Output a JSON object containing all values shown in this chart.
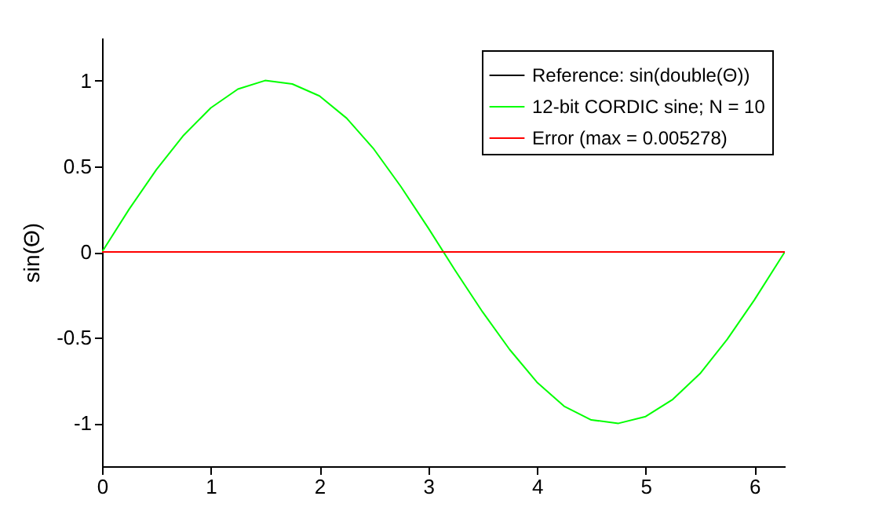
{
  "chart_data": {
    "type": "line",
    "ylabel": "sin(Θ)",
    "x": [
      0,
      0.25,
      0.5,
      0.75,
      1,
      1.25,
      1.5,
      1.75,
      2,
      2.25,
      2.5,
      2.75,
      3,
      3.25,
      3.5,
      3.75,
      4,
      4.25,
      4.5,
      4.75,
      5,
      5.25,
      5.5,
      5.75,
      6,
      6.25,
      6.28
    ],
    "series": [
      {
        "name": "Reference: sin(double(Θ))",
        "color": "#000000",
        "values": [
          null,
          null,
          null,
          null,
          null,
          null,
          null,
          null,
          null,
          null,
          null,
          null,
          null,
          null,
          null,
          null,
          null,
          null,
          null,
          null,
          null,
          null,
          null,
          null,
          null,
          null,
          null
        ]
      },
      {
        "name": "12-bit CORDIC sine; N = 10",
        "color": "#00ff00",
        "values": [
          0,
          0.25,
          0.48,
          0.68,
          0.84,
          0.95,
          1,
          0.98,
          0.91,
          0.78,
          0.6,
          0.38,
          0.14,
          -0.11,
          -0.35,
          -0.57,
          -0.76,
          -0.9,
          -0.98,
          -1,
          -0.96,
          -0.86,
          -0.71,
          -0.51,
          -0.28,
          -0.03,
          0
        ]
      },
      {
        "name": "Error (max = 0.005278)",
        "color": "#ff0000",
        "values": [
          0,
          0,
          0,
          0,
          0,
          0,
          0,
          0,
          0,
          0,
          0,
          0,
          0,
          0,
          0,
          0,
          0,
          0,
          0,
          0,
          0,
          0,
          0,
          0,
          0,
          0,
          0
        ]
      }
    ],
    "xlim": [
      0,
      6.28
    ],
    "xticks": [
      0,
      1,
      2,
      3,
      4,
      5,
      6
    ],
    "ylim": [
      -1.25,
      1.25
    ],
    "yticks": [
      -1,
      -0.5,
      0,
      0.5,
      1
    ],
    "grid": false,
    "legend": "top right"
  }
}
